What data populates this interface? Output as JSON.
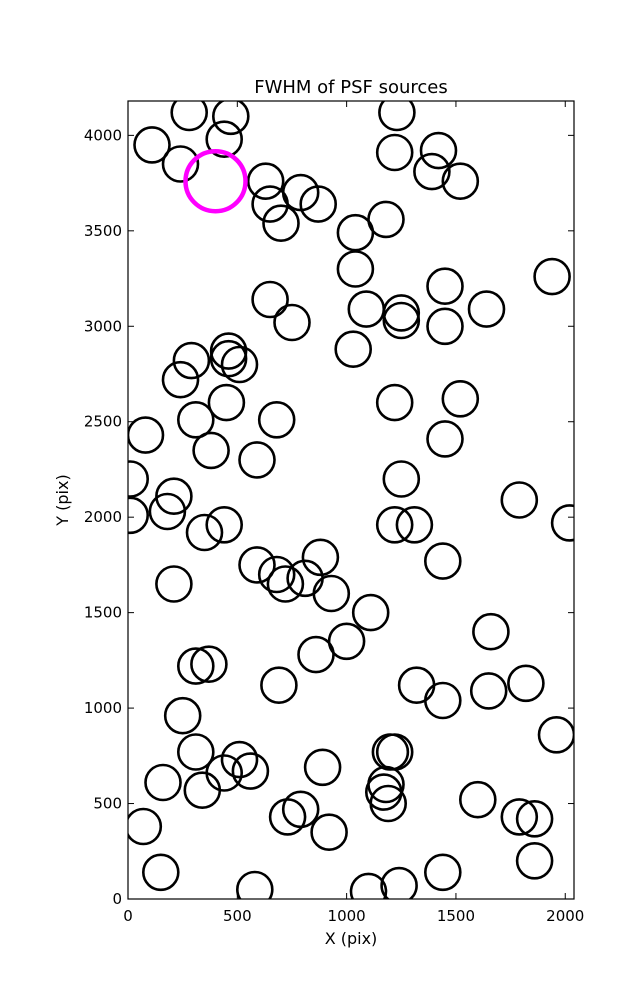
{
  "chart_data": {
    "type": "scatter",
    "title": "FWHM of PSF sources",
    "xlabel": "X (pix)",
    "ylabel": "Y (pix)",
    "xlim": [
      0,
      2040
    ],
    "ylim": [
      0,
      4180
    ],
    "grid": false,
    "xticks": [
      0,
      500,
      1000,
      1500,
      2000
    ],
    "yticks": [
      0,
      500,
      1000,
      1500,
      2000,
      2500,
      3000,
      3500,
      4000
    ],
    "marker": "open-circle",
    "colors": {
      "sources": "#000000",
      "highlight": "#ff00ff"
    },
    "series": [
      {
        "role": "sources",
        "points": [
          {
            "x": 280,
            "y": 4120
          },
          {
            "x": 440,
            "y": 3980
          },
          {
            "x": 470,
            "y": 4100
          },
          {
            "x": 110,
            "y": 3950
          },
          {
            "x": 240,
            "y": 3850
          },
          {
            "x": 630,
            "y": 3760
          },
          {
            "x": 790,
            "y": 3700
          },
          {
            "x": 650,
            "y": 3640
          },
          {
            "x": 700,
            "y": 3540
          },
          {
            "x": 870,
            "y": 3640
          },
          {
            "x": 1040,
            "y": 3490
          },
          {
            "x": 1180,
            "y": 3560
          },
          {
            "x": 1230,
            "y": 4120
          },
          {
            "x": 1220,
            "y": 3910
          },
          {
            "x": 1420,
            "y": 3920
          },
          {
            "x": 1390,
            "y": 3810
          },
          {
            "x": 1520,
            "y": 3760
          },
          {
            "x": 1040,
            "y": 3300
          },
          {
            "x": 1090,
            "y": 3090
          },
          {
            "x": 1250,
            "y": 3070
          },
          {
            "x": 1250,
            "y": 3030
          },
          {
            "x": 1450,
            "y": 3210
          },
          {
            "x": 1450,
            "y": 3000
          },
          {
            "x": 1640,
            "y": 3090
          },
          {
            "x": 1940,
            "y": 3260
          },
          {
            "x": 650,
            "y": 3140
          },
          {
            "x": 750,
            "y": 3020
          },
          {
            "x": 1030,
            "y": 2880
          },
          {
            "x": 290,
            "y": 2820
          },
          {
            "x": 460,
            "y": 2870
          },
          {
            "x": 460,
            "y": 2830
          },
          {
            "x": 510,
            "y": 2800
          },
          {
            "x": 240,
            "y": 2720
          },
          {
            "x": 450,
            "y": 2600
          },
          {
            "x": 310,
            "y": 2510
          },
          {
            "x": 680,
            "y": 2510
          },
          {
            "x": 80,
            "y": 2430
          },
          {
            "x": 380,
            "y": 2350
          },
          {
            "x": 590,
            "y": 2300
          },
          {
            "x": 1220,
            "y": 2600
          },
          {
            "x": 1520,
            "y": 2620
          },
          {
            "x": 1450,
            "y": 2410
          },
          {
            "x": 10,
            "y": 2200
          },
          {
            "x": 10,
            "y": 2010
          },
          {
            "x": 210,
            "y": 2110
          },
          {
            "x": 180,
            "y": 2030
          },
          {
            "x": 350,
            "y": 1920
          },
          {
            "x": 440,
            "y": 1960
          },
          {
            "x": 1250,
            "y": 2200
          },
          {
            "x": 1220,
            "y": 1960
          },
          {
            "x": 1310,
            "y": 1960
          },
          {
            "x": 1790,
            "y": 2090
          },
          {
            "x": 2020,
            "y": 1970
          },
          {
            "x": 1440,
            "y": 1770
          },
          {
            "x": 590,
            "y": 1750
          },
          {
            "x": 680,
            "y": 1700
          },
          {
            "x": 720,
            "y": 1650
          },
          {
            "x": 810,
            "y": 1680
          },
          {
            "x": 880,
            "y": 1790
          },
          {
            "x": 930,
            "y": 1600
          },
          {
            "x": 1110,
            "y": 1500
          },
          {
            "x": 210,
            "y": 1650
          },
          {
            "x": 1000,
            "y": 1350
          },
          {
            "x": 860,
            "y": 1280
          },
          {
            "x": 310,
            "y": 1220
          },
          {
            "x": 370,
            "y": 1230
          },
          {
            "x": 690,
            "y": 1120
          },
          {
            "x": 1660,
            "y": 1400
          },
          {
            "x": 1320,
            "y": 1120
          },
          {
            "x": 1440,
            "y": 1040
          },
          {
            "x": 1650,
            "y": 1090
          },
          {
            "x": 1820,
            "y": 1130
          },
          {
            "x": 1960,
            "y": 860
          },
          {
            "x": 250,
            "y": 960
          },
          {
            "x": 310,
            "y": 770
          },
          {
            "x": 510,
            "y": 730
          },
          {
            "x": 440,
            "y": 660
          },
          {
            "x": 560,
            "y": 670
          },
          {
            "x": 160,
            "y": 610
          },
          {
            "x": 340,
            "y": 570
          },
          {
            "x": 890,
            "y": 690
          },
          {
            "x": 1200,
            "y": 770
          },
          {
            "x": 1220,
            "y": 770
          },
          {
            "x": 1180,
            "y": 600
          },
          {
            "x": 1170,
            "y": 560
          },
          {
            "x": 1190,
            "y": 500
          },
          {
            "x": 790,
            "y": 470
          },
          {
            "x": 730,
            "y": 430
          },
          {
            "x": 920,
            "y": 350
          },
          {
            "x": 70,
            "y": 380
          },
          {
            "x": 150,
            "y": 140
          },
          {
            "x": 580,
            "y": 50
          },
          {
            "x": 1100,
            "y": 40
          },
          {
            "x": 1240,
            "y": 70
          },
          {
            "x": 1440,
            "y": 140
          },
          {
            "x": 1600,
            "y": 520
          },
          {
            "x": 1790,
            "y": 430
          },
          {
            "x": 1860,
            "y": 420
          },
          {
            "x": 1860,
            "y": 200
          }
        ]
      },
      {
        "role": "highlight",
        "points": [
          {
            "x": 400,
            "y": 3760
          }
        ]
      }
    ]
  }
}
